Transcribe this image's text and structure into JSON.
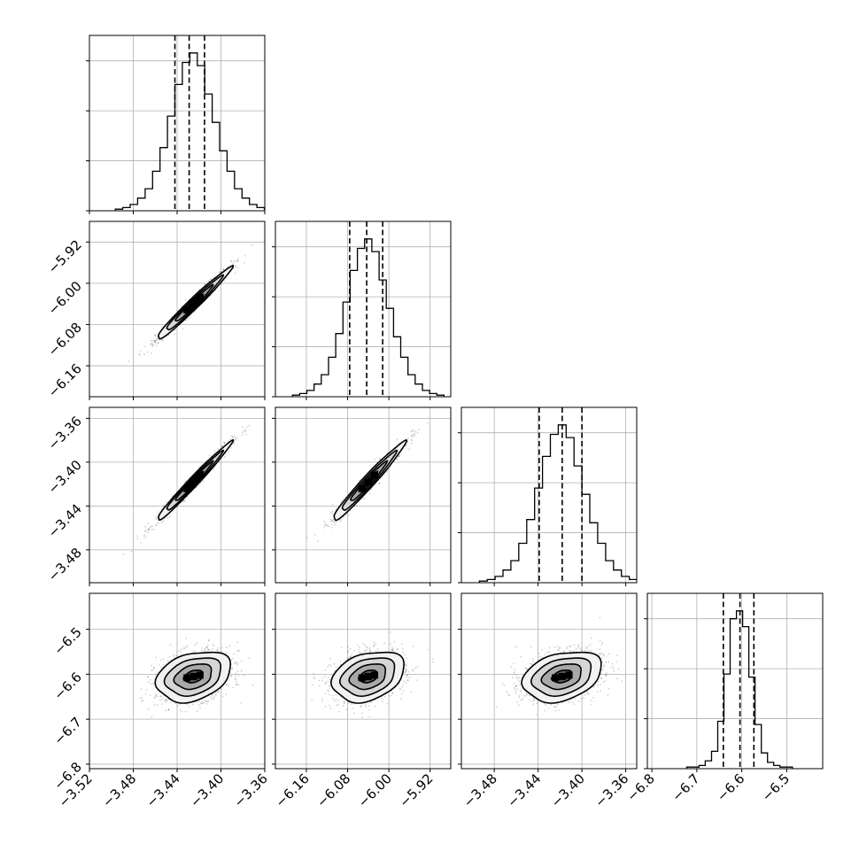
{
  "chart_data": {
    "type": "corner",
    "grid": true,
    "parameters": [
      {
        "range": [
          -3.52,
          -3.36
        ],
        "ticks": [
          -3.52,
          -3.48,
          -3.44,
          -3.4,
          -3.36
        ],
        "tick_labels": [
          "−3.52",
          "−3.48",
          "−3.44",
          "−3.40",
          "−3.36"
        ],
        "mean": -3.425,
        "sd": 0.017,
        "quantiles": [
          -3.442,
          -3.429,
          -3.415
        ],
        "hist_counts": [
          1,
          2,
          4,
          8,
          14,
          25,
          40,
          60,
          80,
          94,
          100,
          92,
          74,
          56,
          38,
          25,
          14,
          8,
          4,
          2,
          1
        ]
      },
      {
        "range": [
          -6.22,
          -5.88
        ],
        "ticks": [
          -6.16,
          -6.08,
          -6.0,
          -5.92
        ],
        "tick_labels": [
          "−6.16",
          "−6.08",
          "−6.00",
          "−5.92"
        ],
        "mean": -6.04,
        "sd": 0.035,
        "quantiles": [
          -6.076,
          -6.043,
          -6.012
        ],
        "hist_counts": [
          1,
          2,
          4,
          8,
          14,
          25,
          40,
          60,
          80,
          94,
          100,
          92,
          74,
          56,
          38,
          25,
          14,
          8,
          4,
          2,
          1
        ]
      },
      {
        "range": [
          -3.51,
          -3.35
        ],
        "ticks": [
          -3.48,
          -3.44,
          -3.4,
          -3.36
        ],
        "tick_labels": [
          "−3.48",
          "−3.44",
          "−3.40",
          "−3.36"
        ],
        "mean": -3.418,
        "sd": 0.018,
        "quantiles": [
          -3.439,
          -3.418,
          -3.4
        ],
        "hist_counts": [
          1,
          2,
          4,
          8,
          14,
          25,
          40,
          60,
          80,
          94,
          100,
          92,
          74,
          56,
          38,
          25,
          14,
          8,
          4,
          2,
          1
        ]
      },
      {
        "range": [
          -6.81,
          -6.42
        ],
        "ticks": [
          -6.8,
          -6.7,
          -6.6,
          -6.5
        ],
        "tick_labels": [
          "−6.8",
          "−6.7",
          "−6.6",
          "−6.5"
        ],
        "mean": -6.605,
        "sd": 0.028,
        "quantiles": [
          -6.641,
          -6.604,
          -6.573
        ],
        "hist_counts": [
          1,
          1,
          2,
          5,
          11,
          30,
          60,
          95,
          100,
          90,
          58,
          28,
          10,
          4,
          2,
          1,
          1
        ]
      }
    ],
    "correlations": [
      [
        1,
        0.98,
        0.985,
        0.3
      ],
      [
        0.98,
        1,
        0.975,
        0.3
      ],
      [
        0.985,
        0.975,
        1,
        0.3
      ],
      [
        0.3,
        0.3,
        0.3,
        1
      ]
    ]
  }
}
